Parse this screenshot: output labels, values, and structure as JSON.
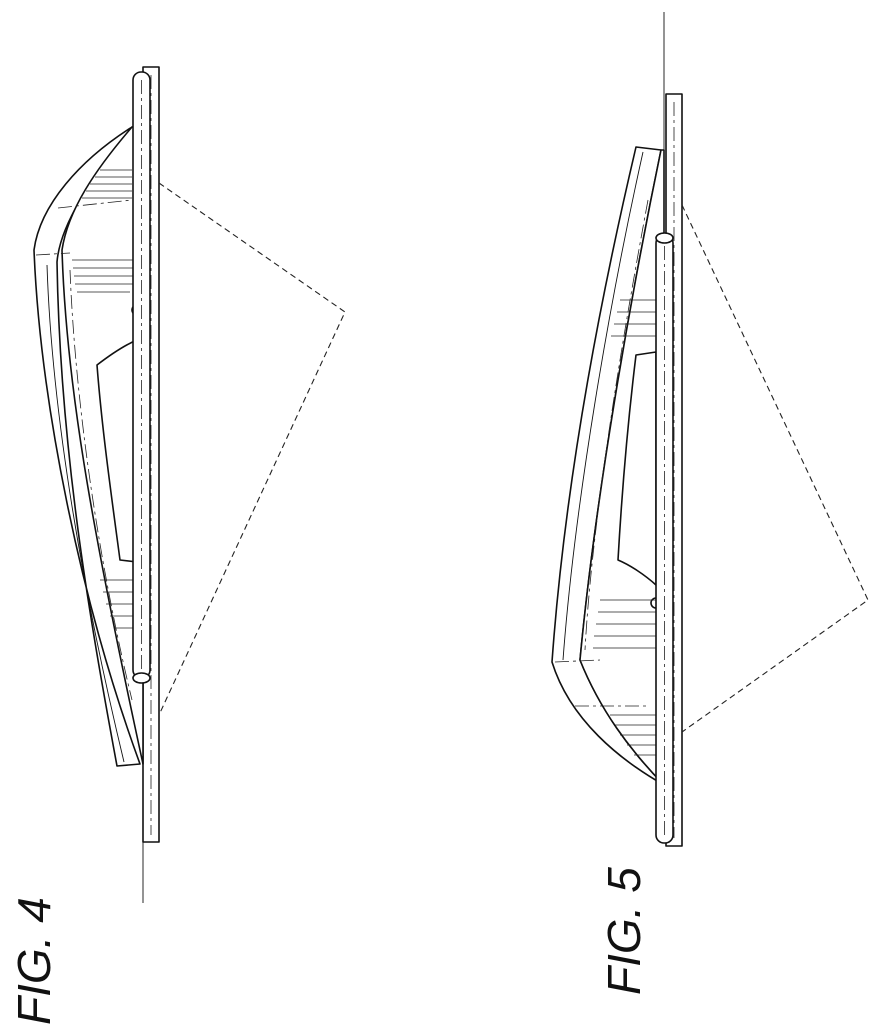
{
  "figures": [
    {
      "id": "fig4",
      "label": "FIG. 4"
    },
    {
      "id": "fig5",
      "label": "FIG. 5"
    }
  ],
  "colors": {
    "line": "#111111",
    "background": "#ffffff"
  }
}
